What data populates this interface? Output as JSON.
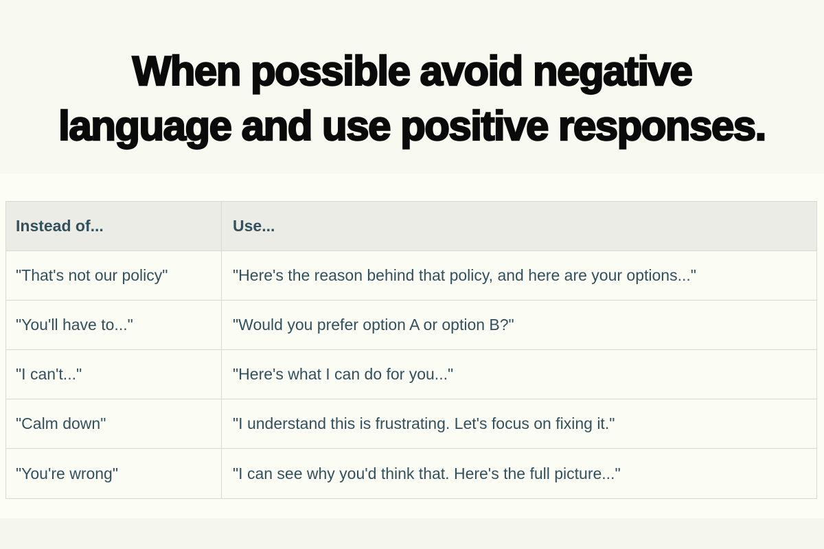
{
  "colors": {
    "page_top_bg": "#f8f9f0",
    "page_mid_bg": "#fcfdf5",
    "page_bottom_bg": "#f5f6ee",
    "title_color": "#0a0a0a",
    "table_header_bg": "#ebece5",
    "table_body_bg": "#fbfcf4",
    "table_border": "#d8d9d2",
    "table_text": "#32505e"
  },
  "title": {
    "line1": "When possible avoid negative",
    "line2": "language and use positive responses."
  },
  "table": {
    "columns": [
      "Instead of...",
      "Use..."
    ],
    "rows": [
      {
        "instead": "\"That's not our policy\"",
        "use": "\"Here's the reason behind that policy, and here are your options...\""
      },
      {
        "instead": "\"You'll have to...\"",
        "use": "\"Would you prefer option A or option B?\""
      },
      {
        "instead": "\"I can't...\"",
        "use": "\"Here's what I can do for you...\""
      },
      {
        "instead": "\"Calm down\"",
        "use": "\"I understand this is frustrating. Let's focus on fixing it.\""
      },
      {
        "instead": "\"You're wrong\"",
        "use": "\"I can see why you'd think that. Here's the full picture...\""
      }
    ]
  }
}
